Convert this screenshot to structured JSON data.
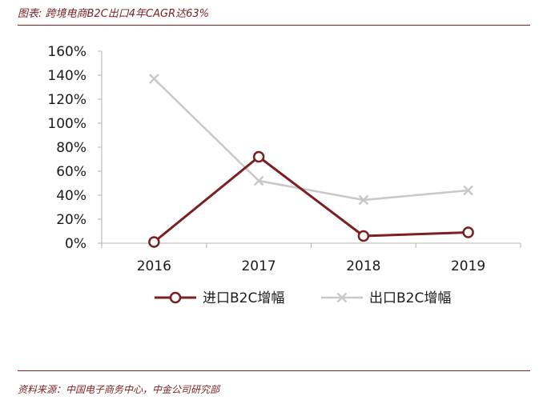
{
  "figure": {
    "title": "图表: 跨境电商B2C出口4年CAGR达63%",
    "source": "资料来源：中国电子商务中心，中金公司研究部"
  },
  "colors": {
    "accent": "#7a1f22",
    "import_series": "#7a1f22",
    "export_series": "#c8c8c8"
  },
  "chart_data": {
    "type": "line",
    "title": "",
    "xlabel": "",
    "ylabel": "",
    "categories": [
      "2016",
      "2017",
      "2018",
      "2019"
    ],
    "ylim": [
      0,
      160
    ],
    "yticks": [
      "0%",
      "20%",
      "40%",
      "60%",
      "80%",
      "100%",
      "120%",
      "140%",
      "160%"
    ],
    "grid": false,
    "legend_position": "bottom",
    "series": [
      {
        "name": "进口B2C增幅",
        "marker": "circle",
        "color": "#7a1f22",
        "values": [
          1,
          72,
          6,
          9
        ]
      },
      {
        "name": "出口B2C增幅",
        "marker": "x",
        "color": "#c8c8c8",
        "values": [
          137,
          52,
          36,
          44
        ]
      }
    ]
  }
}
